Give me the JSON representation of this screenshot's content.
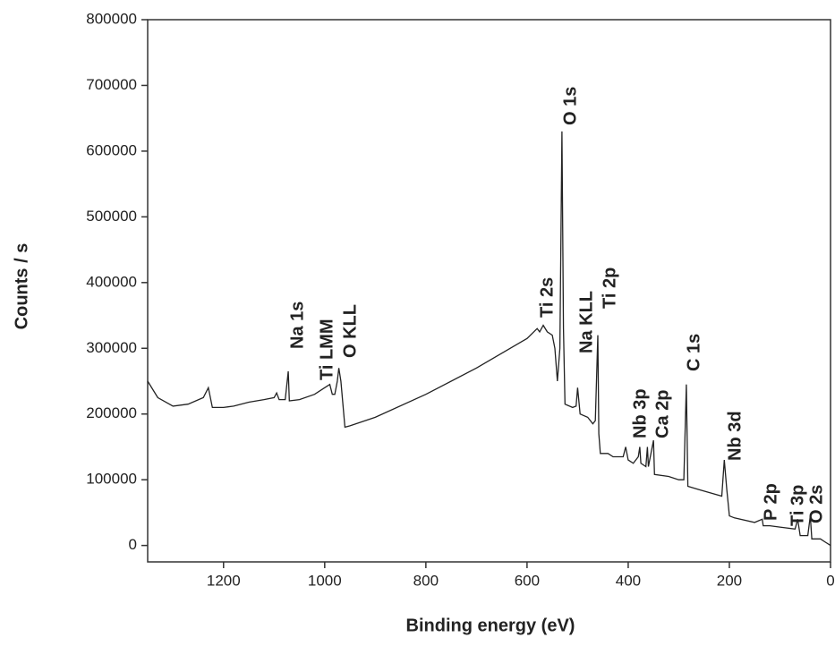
{
  "chart_data": {
    "type": "line",
    "xlabel": "Binding energy (eV)",
    "ylabel": "Counts / s",
    "xlim": [
      1350,
      0
    ],
    "xticks": [
      1200,
      1000,
      800,
      600,
      400,
      200,
      0
    ],
    "ylim": [
      -25000,
      800000
    ],
    "yticks": [
      0,
      100000,
      200000,
      300000,
      400000,
      500000,
      600000,
      700000,
      800000
    ],
    "annotations": [
      "Na 1s",
      "Ti LMM",
      "O KLL",
      "Ti 2s",
      "O 1s",
      "Na KLL",
      "Ti 2p",
      "Nb 3p",
      "Ca 2p",
      "C 1s",
      "Nb 3d",
      "P 2p",
      "Ti 3p",
      "O 2s"
    ],
    "series": [
      {
        "color": "#222222",
        "x": [
          1350,
          1330,
          1300,
          1270,
          1240,
          1230,
          1222,
          1200,
          1180,
          1150,
          1120,
          1100,
          1095,
          1090,
          1078,
          1072,
          1070,
          1050,
          1020,
          1000,
          990,
          985,
          980,
          975,
          972,
          968,
          960,
          950,
          900,
          800,
          700,
          600,
          580,
          575,
          568,
          560,
          550,
          545,
          540,
          535,
          531,
          528,
          525,
          510,
          503,
          500,
          495,
          480,
          470,
          465,
          460,
          458,
          455,
          440,
          430,
          410,
          405,
          400,
          390,
          380,
          377,
          375,
          365,
          362,
          360,
          350,
          348,
          320,
          300,
          290,
          285,
          282,
          260,
          215,
          210,
          205,
          200,
          190,
          150,
          135,
          133,
          120,
          100,
          70,
          65,
          60,
          45,
          40,
          37,
          20,
          10,
          0
        ],
        "values": [
          250000,
          225000,
          212000,
          215000,
          225000,
          240000,
          210000,
          210000,
          212000,
          218000,
          222000,
          225000,
          232000,
          222000,
          222000,
          265000,
          220000,
          222000,
          230000,
          240000,
          245000,
          230000,
          230000,
          250000,
          270000,
          250000,
          180000,
          182000,
          195000,
          230000,
          270000,
          315000,
          330000,
          325000,
          335000,
          325000,
          320000,
          300000,
          250000,
          300000,
          630000,
          330000,
          215000,
          210000,
          212000,
          240000,
          200000,
          195000,
          185000,
          190000,
          320000,
          170000,
          140000,
          140000,
          135000,
          135000,
          150000,
          130000,
          125000,
          135000,
          150000,
          125000,
          120000,
          150000,
          120000,
          160000,
          108000,
          105000,
          100000,
          100000,
          245000,
          90000,
          85000,
          75000,
          130000,
          85000,
          45000,
          42000,
          35000,
          40000,
          30000,
          30000,
          28000,
          25000,
          40000,
          15000,
          15000,
          45000,
          10000,
          10000,
          5000,
          0
        ]
      }
    ]
  }
}
